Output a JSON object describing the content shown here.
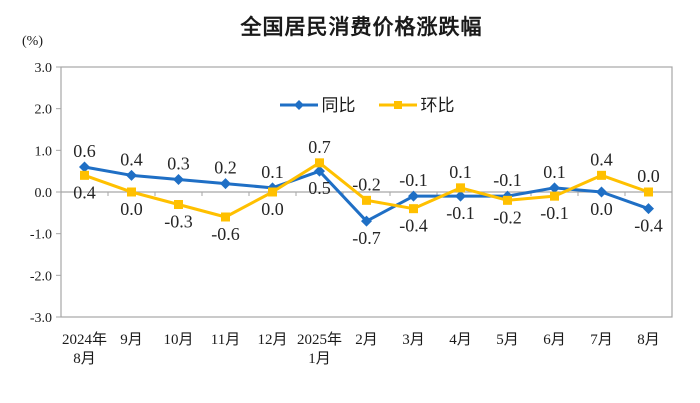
{
  "chart_data": {
    "type": "line",
    "title": "全国居民消费价格涨跌幅",
    "ylabel": "(%)",
    "xlabel": "",
    "categories": [
      "2024年\n8月",
      "9月",
      "10月",
      "11月",
      "12月",
      "2025年\n1月",
      "2月",
      "3月",
      "4月",
      "5月",
      "6月",
      "7月",
      "8月"
    ],
    "series": [
      {
        "key": "yoy",
        "name": "同比",
        "color": "#1f6fc5",
        "marker": "diamond",
        "values": [
          0.6,
          0.4,
          0.3,
          0.2,
          0.1,
          0.5,
          -0.7,
          -0.1,
          -0.1,
          -0.1,
          0.1,
          0.0,
          -0.4
        ]
      },
      {
        "key": "mom",
        "name": "环比",
        "color": "#ffc000",
        "marker": "square",
        "values": [
          0.4,
          0.0,
          -0.3,
          -0.6,
          0.0,
          0.7,
          -0.2,
          -0.4,
          0.1,
          -0.2,
          -0.1,
          0.4,
          0.0
        ]
      }
    ],
    "ylim": [
      -3.0,
      3.0
    ],
    "yticks": [
      3.0,
      2.0,
      1.0,
      0.0,
      -1.0,
      -2.0,
      -3.0
    ],
    "grid": false,
    "data_labels": true,
    "legend_position": "top-center",
    "axis_color": "#a6a6a6",
    "text_color": "#1a1a1a"
  }
}
